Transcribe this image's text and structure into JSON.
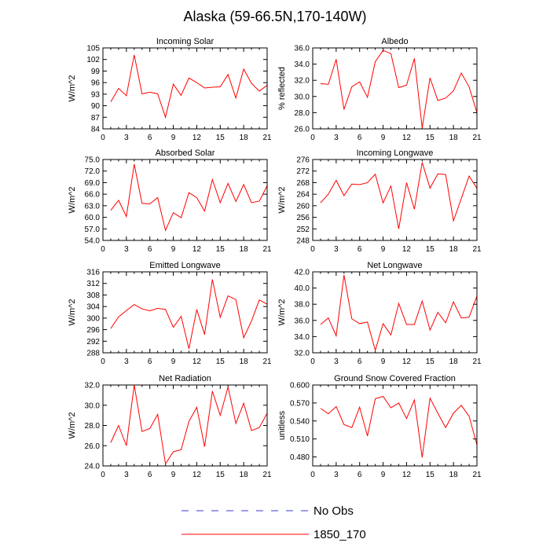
{
  "figure": {
    "title": "Alaska (59-66.5N,170-140W)"
  },
  "legend": {
    "items": [
      {
        "label": "No Obs",
        "color": "#3b3bd6",
        "dash": true
      },
      {
        "label": "1850_170",
        "color": "#ff0000",
        "dash": false
      }
    ]
  },
  "line_color": "#ff0000",
  "chart_data": [
    {
      "type": "line",
      "title": "Incoming Solar",
      "ylabel": "W/m^2",
      "xlim": [
        0,
        21
      ],
      "ylim": [
        84,
        105
      ],
      "xticks": [
        0,
        3,
        6,
        9,
        12,
        15,
        18,
        21
      ],
      "yticks": [
        "84",
        "87",
        "90",
        "93",
        "96",
        "99",
        "102",
        "105"
      ],
      "series": [
        {
          "x": [
            1,
            2,
            3,
            4,
            5,
            6,
            7,
            8,
            9,
            10,
            11,
            12,
            13,
            14,
            15,
            16,
            17,
            18,
            19,
            20,
            21
          ],
          "values": [
            91.0,
            94.5,
            92.6,
            103.2,
            93.1,
            93.5,
            93.1,
            87.0,
            95.6,
            92.7,
            97.2,
            96.0,
            94.6,
            94.8,
            94.9,
            98.1,
            92.0,
            99.5,
            95.8,
            93.8,
            95.3
          ]
        }
      ]
    },
    {
      "type": "line",
      "title": "Albedo",
      "ylabel": "% reflected",
      "xlim": [
        0,
        21
      ],
      "ylim": [
        26,
        36
      ],
      "xticks": [
        0,
        3,
        6,
        9,
        12,
        15,
        18,
        21
      ],
      "yticks": [
        "26.0",
        "28.0",
        "30.0",
        "32.0",
        "34.0",
        "36.0"
      ],
      "series": [
        {
          "x": [
            1,
            2,
            3,
            4,
            5,
            6,
            7,
            8,
            9,
            10,
            11,
            12,
            13,
            14,
            15,
            16,
            17,
            18,
            19,
            20,
            21
          ],
          "values": [
            31.6,
            31.5,
            34.6,
            28.4,
            31.2,
            31.8,
            29.9,
            34.3,
            35.7,
            35.3,
            31.1,
            31.4,
            34.7,
            26.1,
            32.3,
            29.5,
            29.8,
            30.7,
            32.9,
            31.2,
            28.0
          ]
        }
      ]
    },
    {
      "type": "line",
      "title": "Absorbed Solar",
      "ylabel": "W/m^2",
      "xlim": [
        0,
        21
      ],
      "ylim": [
        54,
        75
      ],
      "xticks": [
        0,
        3,
        6,
        9,
        12,
        15,
        18,
        21
      ],
      "yticks": [
        "54.0",
        "57.0",
        "60.0",
        "63.0",
        "66.0",
        "69.0",
        "72.0",
        "75.0"
      ],
      "series": [
        {
          "x": [
            1,
            2,
            3,
            4,
            5,
            6,
            7,
            8,
            9,
            10,
            11,
            12,
            13,
            14,
            15,
            16,
            17,
            18,
            19,
            20,
            21
          ],
          "values": [
            61.8,
            64.4,
            60.2,
            73.8,
            63.6,
            63.5,
            65.1,
            56.6,
            61.2,
            59.9,
            66.4,
            65.1,
            61.6,
            69.8,
            63.8,
            68.8,
            64.1,
            68.5,
            63.8,
            64.2,
            68.2
          ]
        }
      ]
    },
    {
      "type": "line",
      "title": "Incoming Longwave",
      "ylabel": "W/m^2",
      "xlim": [
        0,
        21
      ],
      "ylim": [
        248,
        276
      ],
      "xticks": [
        0,
        3,
        6,
        9,
        12,
        15,
        18,
        21
      ],
      "yticks": [
        "248",
        "252",
        "256",
        "260",
        "264",
        "268",
        "272",
        "276"
      ],
      "series": [
        {
          "x": [
            1,
            2,
            3,
            4,
            5,
            6,
            7,
            8,
            9,
            10,
            11,
            12,
            13,
            14,
            15,
            16,
            17,
            18,
            19,
            20,
            21
          ],
          "values": [
            261.0,
            264.0,
            268.8,
            263.5,
            267.5,
            267.3,
            268.0,
            270.9,
            261.0,
            266.8,
            252.0,
            268.0,
            258.8,
            275.0,
            266.1,
            271.0,
            270.8,
            254.8,
            262.5,
            270.3,
            266.0
          ]
        }
      ]
    },
    {
      "type": "line",
      "title": "Emitted Longwave",
      "ylabel": "W/m^2",
      "xlim": [
        0,
        21
      ],
      "ylim": [
        288,
        316
      ],
      "xticks": [
        0,
        3,
        6,
        9,
        12,
        15,
        18,
        21
      ],
      "yticks": [
        "288",
        "292",
        "296",
        "300",
        "304",
        "308",
        "312",
        "316"
      ],
      "series": [
        {
          "x": [
            1,
            2,
            3,
            4,
            5,
            6,
            7,
            8,
            9,
            10,
            11,
            12,
            13,
            14,
            15,
            16,
            17,
            18,
            19,
            20,
            21
          ],
          "values": [
            296.4,
            300.4,
            302.6,
            304.7,
            303.2,
            302.5,
            303.4,
            303.0,
            296.8,
            300.6,
            289.4,
            303.0,
            294.3,
            313.4,
            300.3,
            307.7,
            306.4,
            293.2,
            299.0,
            306.3,
            304.8
          ]
        }
      ]
    },
    {
      "type": "line",
      "title": "Net Longwave",
      "ylabel": "W/m^2",
      "xlim": [
        0,
        21
      ],
      "ylim": [
        32,
        42
      ],
      "xticks": [
        0,
        3,
        6,
        9,
        12,
        15,
        18,
        21
      ],
      "yticks": [
        "32.0",
        "34.0",
        "36.0",
        "38.0",
        "40.0",
        "42.0"
      ],
      "series": [
        {
          "x": [
            1,
            2,
            3,
            4,
            5,
            6,
            7,
            8,
            9,
            10,
            11,
            12,
            13,
            14,
            15,
            16,
            17,
            18,
            19,
            20,
            21
          ],
          "values": [
            35.5,
            36.3,
            34.1,
            41.6,
            36.2,
            35.6,
            35.8,
            32.3,
            35.6,
            34.2,
            38.1,
            35.5,
            35.5,
            38.4,
            34.8,
            37.0,
            35.7,
            38.3,
            36.3,
            36.4,
            39.0
          ]
        }
      ]
    },
    {
      "type": "line",
      "title": "Net Radiation",
      "ylabel": "W/m^2",
      "xlim": [
        0,
        21
      ],
      "ylim": [
        24,
        32
      ],
      "xticks": [
        0,
        3,
        6,
        9,
        12,
        15,
        18,
        21
      ],
      "yticks": [
        "24.0",
        "26.0",
        "28.0",
        "30.0",
        "32.0"
      ],
      "series": [
        {
          "x": [
            1,
            2,
            3,
            4,
            5,
            6,
            7,
            8,
            9,
            10,
            11,
            12,
            13,
            14,
            15,
            16,
            17,
            18,
            19,
            20,
            21
          ],
          "values": [
            26.3,
            28.0,
            26.0,
            32.0,
            27.4,
            27.7,
            29.1,
            24.2,
            25.4,
            25.6,
            28.4,
            29.8,
            25.9,
            31.4,
            29.0,
            31.8,
            28.2,
            30.2,
            27.5,
            27.8,
            29.2
          ]
        }
      ]
    },
    {
      "type": "line",
      "title": "Ground Snow Covered Fraction",
      "ylabel": "unitless",
      "xlim": [
        0,
        21
      ],
      "ylim": [
        0.465,
        0.6
      ],
      "xticks": [
        0,
        3,
        6,
        9,
        12,
        15,
        18,
        21
      ],
      "yticks": [
        "0.480",
        "0.510",
        "0.540",
        "0.570",
        "0.600"
      ],
      "ytick_values": [
        0.48,
        0.51,
        0.54,
        0.57,
        0.6
      ],
      "series": [
        {
          "x": [
            1,
            2,
            3,
            4,
            5,
            6,
            7,
            8,
            9,
            10,
            11,
            12,
            13,
            14,
            15,
            16,
            17,
            18,
            19,
            20,
            21
          ],
          "values": [
            0.561,
            0.552,
            0.564,
            0.534,
            0.529,
            0.563,
            0.515,
            0.577,
            0.581,
            0.562,
            0.57,
            0.544,
            0.575,
            0.479,
            0.578,
            0.553,
            0.529,
            0.553,
            0.566,
            0.548,
            0.5
          ]
        }
      ]
    }
  ]
}
